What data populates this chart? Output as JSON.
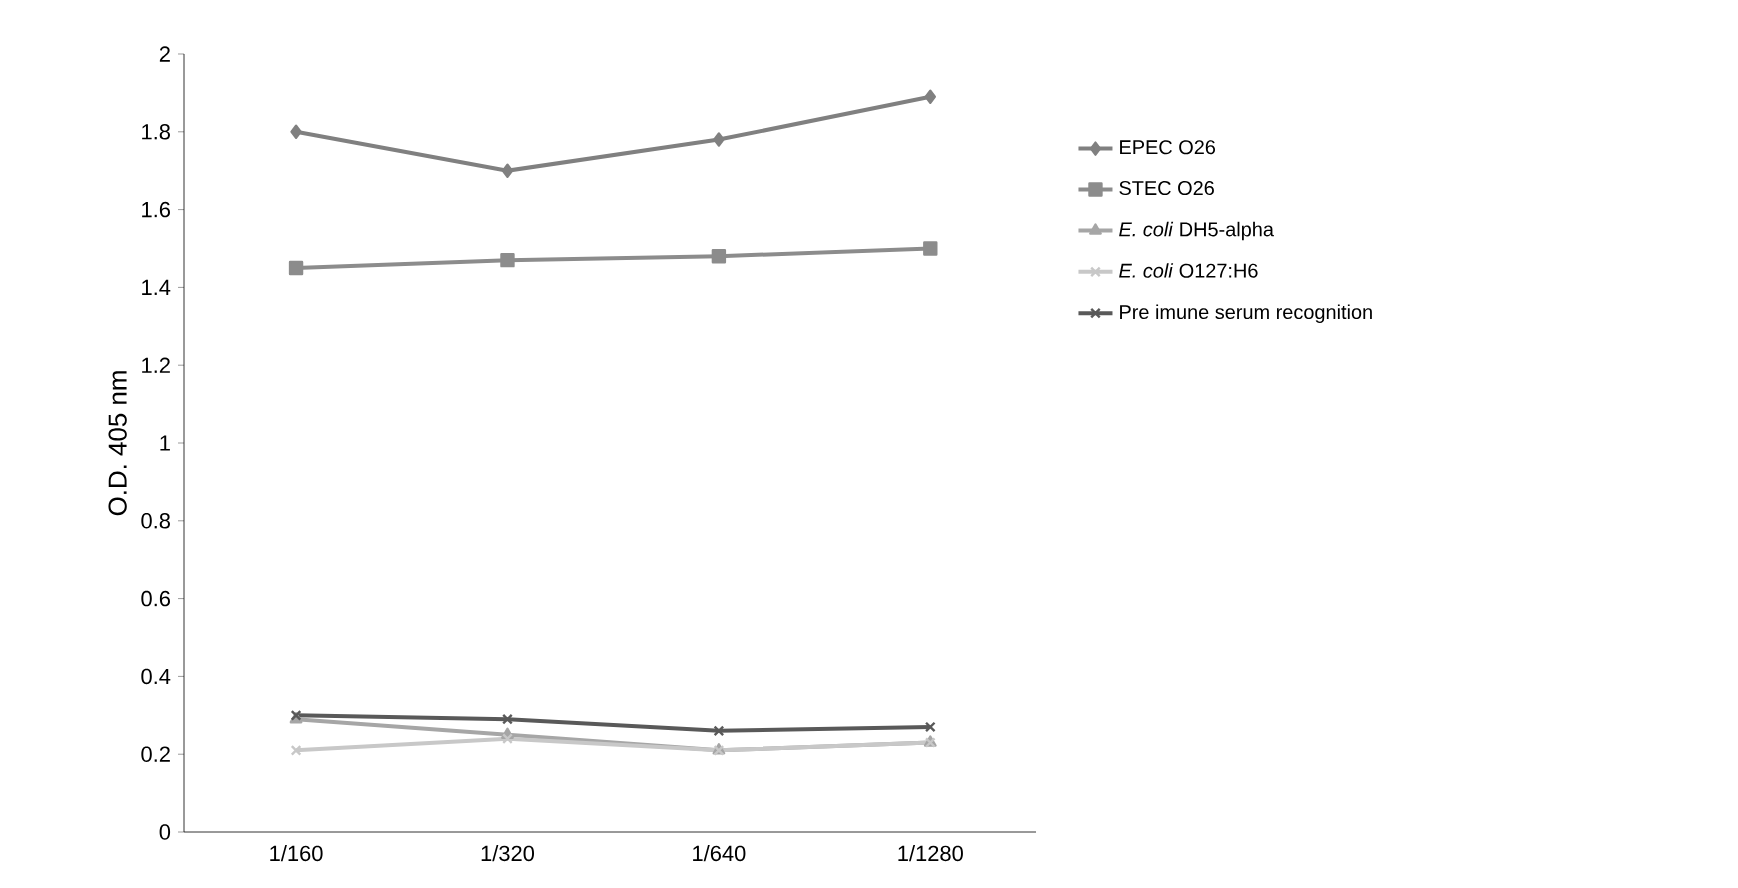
{
  "chart_data": {
    "type": "line",
    "ylabel": "O.D. 405 nm",
    "categories": [
      "1/160",
      "1/320",
      "1/640",
      "1/1280"
    ],
    "series": [
      {
        "name": "EPEC O26",
        "color": "#808080",
        "marker": "diamond",
        "values": [
          1.8,
          1.7,
          1.78,
          1.89
        ]
      },
      {
        "name": "STEC O26",
        "color": "#8c8c8c",
        "marker": "square",
        "values": [
          1.45,
          1.47,
          1.48,
          1.5
        ]
      },
      {
        "name": "*E. coli* DH5-alpha",
        "color": "#a6a6a6",
        "marker": "triangle",
        "values": [
          0.29,
          0.25,
          0.21,
          0.23
        ]
      },
      {
        "name": "*E. coli* O127:H6",
        "color": "#c8c8c8",
        "marker": "cross",
        "values": [
          0.21,
          0.24,
          0.21,
          0.23
        ]
      },
      {
        "name": "Pre imune serum recognition",
        "color": "#595959",
        "marker": "cross",
        "values": [
          0.3,
          0.29,
          0.26,
          0.27
        ]
      }
    ],
    "ylim": [
      0,
      2
    ],
    "yticks": [
      0,
      0.2,
      0.4,
      0.6,
      0.8,
      1,
      1.2,
      1.4,
      1.6,
      1.8,
      2
    ],
    "grid": false,
    "legend": "right"
  }
}
